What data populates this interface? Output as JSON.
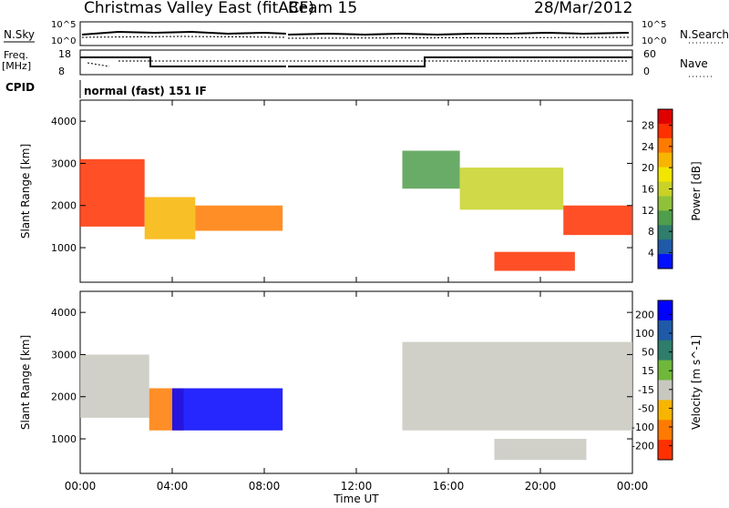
{
  "header": {
    "station": "Christmas Valley East (fitACF)",
    "beam": "Beam 15",
    "date": "28/Mar/2012"
  },
  "noise_panel": {
    "left_label": "N.Sky",
    "right_label": "N.Search",
    "left_ticks": [
      "10^5",
      "10^0"
    ],
    "right_ticks": [
      "10^5",
      "10^0"
    ]
  },
  "freq_panel": {
    "left_label_1": "Freq.",
    "left_label_2": "[MHz]",
    "right_label": "Nave",
    "left_ticks": [
      "18",
      "8"
    ],
    "right_ticks": [
      "60",
      "0"
    ]
  },
  "cpid": {
    "label": "CPID",
    "value": "normal (fast) 151 IF"
  },
  "power_panel": {
    "ylabel": "Slant Range [km]",
    "yticks": [
      "4000",
      "3000",
      "2000",
      "1000"
    ],
    "colorbar_label": "Power [dB]",
    "colorbar_ticks": [
      "28",
      "24",
      "20",
      "16",
      "12",
      "8",
      "4"
    ],
    "colors": [
      "#0010ff",
      "#1f5aa8",
      "#2f7d6b",
      "#4f9e4c",
      "#8fc23a",
      "#c8d228",
      "#f2e600",
      "#f7b500",
      "#ff7a00",
      "#ff3000",
      "#e00000"
    ]
  },
  "velocity_panel": {
    "ylabel": "Slant Range [km]",
    "yticks": [
      "4000",
      "3000",
      "2000",
      "1000"
    ],
    "colorbar_label": "Velocity [m s^-1]",
    "colorbar_ticks": [
      "200",
      "100",
      "50",
      "15",
      "-15",
      "-50",
      "-100",
      "-200"
    ],
    "colors": [
      "#0000ff",
      "#1f5aa8",
      "#2f7d6b",
      "#6fb83a",
      "#c8c8c0",
      "#f7b500",
      "#ff7a00",
      "#ff3000"
    ]
  },
  "xaxis": {
    "label": "Time UT",
    "ticks": [
      "00:00",
      "04:00",
      "08:00",
      "12:00",
      "16:00",
      "20:00",
      "00:00"
    ]
  },
  "chart_data": {
    "type": "heatmap",
    "x_range_hours": [
      0,
      24
    ],
    "y_range_km": [
      180,
      4500
    ],
    "power_regions": [
      {
        "t0": 0.0,
        "t1": 2.8,
        "r0": 1500,
        "r1": 3100,
        "db": 26
      },
      {
        "t0": 2.8,
        "t1": 5.0,
        "r0": 1200,
        "r1": 2200,
        "db": 20
      },
      {
        "t0": 5.0,
        "t1": 8.8,
        "r0": 1400,
        "r1": 2000,
        "db": 24
      },
      {
        "t0": 14.0,
        "t1": 16.5,
        "r0": 2400,
        "r1": 3300,
        "db": 10
      },
      {
        "t0": 16.5,
        "t1": 21.0,
        "r0": 1900,
        "r1": 2900,
        "db": 16
      },
      {
        "t0": 21.0,
        "t1": 24.0,
        "r0": 1300,
        "r1": 2000,
        "db": 26
      },
      {
        "t0": 18.0,
        "t1": 21.5,
        "r0": 450,
        "r1": 900,
        "db": 28
      }
    ],
    "velocity_regions": [
      {
        "t0": 0.0,
        "t1": 3.0,
        "r0": 1500,
        "r1": 3000,
        "v": 0
      },
      {
        "t0": 3.0,
        "t1": 4.5,
        "r0": 1200,
        "r1": 2200,
        "v": -50
      },
      {
        "t0": 4.0,
        "t1": 8.8,
        "r0": 1200,
        "r1": 2200,
        "v": 200
      },
      {
        "t0": 14.0,
        "t1": 24.0,
        "r0": 1200,
        "r1": 3300,
        "v": 0
      },
      {
        "t0": 18.0,
        "t1": 22.0,
        "r0": 500,
        "r1": 1000,
        "v": 0
      }
    ]
  }
}
